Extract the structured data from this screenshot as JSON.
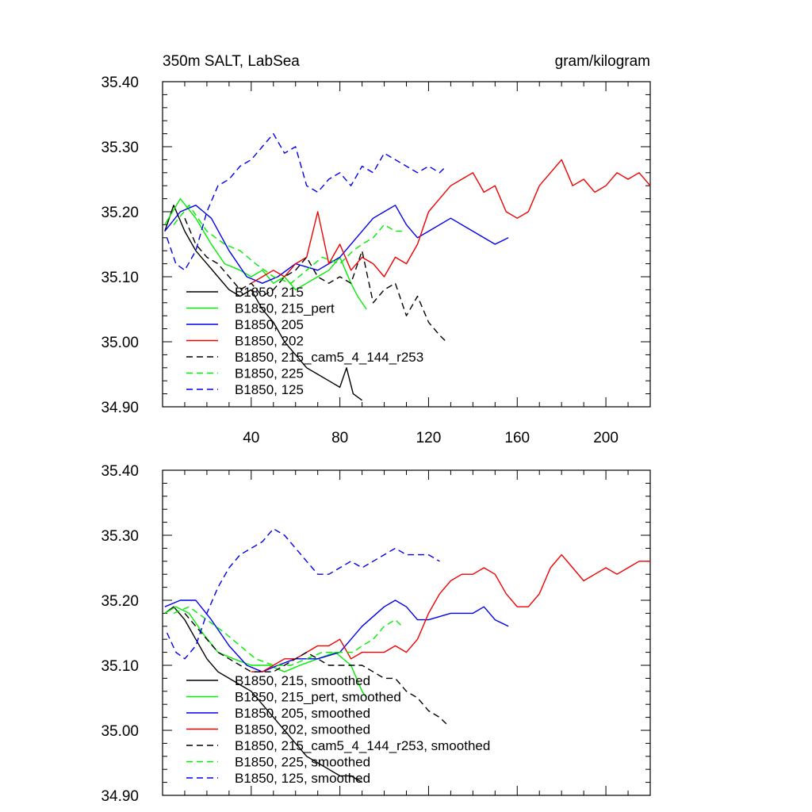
{
  "chart_data": [
    {
      "type": "line",
      "title": "350m SALT, LabSea",
      "units": "gram/kilogram",
      "xlim": [
        0,
        220
      ],
      "ylim": [
        34.9,
        35.4
      ],
      "x_ticks": [
        "40",
        "80",
        "120",
        "160",
        "200"
      ],
      "x_tick_values": [
        40,
        80,
        120,
        160,
        200
      ],
      "y_ticks": [
        "35.40",
        "35.30",
        "35.20",
        "35.10",
        "35.00",
        "34.90"
      ],
      "y_tick_values": [
        35.4,
        35.3,
        35.2,
        35.1,
        35.0,
        34.9
      ],
      "legend": [
        "B1850, 215",
        "B1850, 215_pert",
        "B1850, 205",
        "B1850, 202",
        "B1850, 215_cam5_4_144_r253",
        "B1850, 225",
        "B1850, 125"
      ],
      "series": [
        {
          "name": "B1850, 215",
          "color": "#000000",
          "dash": "solid",
          "x": [
            1,
            5,
            10,
            15,
            20,
            25,
            30,
            35,
            40,
            45,
            50,
            55,
            60,
            65,
            70,
            75,
            80,
            83,
            86,
            90
          ],
          "y": [
            35.17,
            35.21,
            35.17,
            35.14,
            35.12,
            35.1,
            35.08,
            35.07,
            35.08,
            35.05,
            35.03,
            35.0,
            34.98,
            34.96,
            34.95,
            34.94,
            34.93,
            34.96,
            34.92,
            34.91
          ]
        },
        {
          "name": "B1850, 215_pert",
          "color": "#00ee00",
          "dash": "solid",
          "x": [
            1,
            8,
            15,
            22,
            28,
            35,
            40,
            45,
            50,
            55,
            60,
            65,
            70,
            75,
            80,
            85,
            88,
            92
          ],
          "y": [
            35.18,
            35.22,
            35.19,
            35.15,
            35.12,
            35.11,
            35.1,
            35.11,
            35.09,
            35.1,
            35.08,
            35.09,
            35.1,
            35.11,
            35.13,
            35.09,
            35.07,
            35.05
          ]
        },
        {
          "name": "B1850, 205",
          "color": "#0000ee",
          "dash": "solid",
          "x": [
            1,
            8,
            15,
            22,
            30,
            38,
            45,
            52,
            60,
            70,
            80,
            90,
            95,
            100,
            105,
            110,
            115,
            120,
            130,
            140,
            150,
            156
          ],
          "y": [
            35.17,
            35.2,
            35.21,
            35.19,
            35.14,
            35.1,
            35.09,
            35.1,
            35.12,
            35.11,
            35.13,
            35.17,
            35.19,
            35.2,
            35.21,
            35.18,
            35.16,
            35.17,
            35.19,
            35.17,
            35.15,
            35.16
          ]
        },
        {
          "name": "B1850, 202",
          "color": "#ee0000",
          "dash": "solid",
          "x": [
            40,
            45,
            50,
            55,
            60,
            65,
            70,
            75,
            80,
            85,
            90,
            95,
            100,
            105,
            110,
            115,
            120,
            125,
            130,
            135,
            140,
            145,
            150,
            155,
            160,
            165,
            170,
            175,
            180,
            185,
            190,
            195,
            200,
            205,
            210,
            215,
            220
          ],
          "y": [
            35.09,
            35.1,
            35.11,
            35.1,
            35.12,
            35.13,
            35.2,
            35.12,
            35.15,
            35.11,
            35.13,
            35.12,
            35.1,
            35.13,
            35.12,
            35.15,
            35.2,
            35.22,
            35.24,
            35.25,
            35.26,
            35.23,
            35.24,
            35.2,
            35.19,
            35.2,
            35.24,
            35.26,
            35.28,
            35.24,
            35.25,
            35.23,
            35.24,
            35.26,
            35.25,
            35.26,
            35.24
          ]
        },
        {
          "name": "B1850, 215_cam5_4_144_r253",
          "color": "#000000",
          "dash": "dashed",
          "x": [
            10,
            15,
            20,
            25,
            30,
            35,
            40,
            45,
            50,
            55,
            60,
            65,
            70,
            75,
            80,
            85,
            90,
            95,
            100,
            105,
            110,
            115,
            120,
            125,
            128
          ],
          "y": [
            35.19,
            35.15,
            35.13,
            35.12,
            35.1,
            35.08,
            35.09,
            35.07,
            35.08,
            35.1,
            35.11,
            35.13,
            35.1,
            35.09,
            35.1,
            35.09,
            35.14,
            35.06,
            35.08,
            35.09,
            35.04,
            35.07,
            35.03,
            35.01,
            35.0
          ]
        },
        {
          "name": "B1850, 225",
          "color": "#00ee00",
          "dash": "dashed",
          "x": [
            5,
            12,
            20,
            28,
            35,
            42,
            50,
            58,
            65,
            72,
            80,
            86,
            90,
            95,
            100,
            105,
            108
          ],
          "y": [
            35.18,
            35.21,
            35.17,
            35.15,
            35.14,
            35.12,
            35.1,
            35.09,
            35.11,
            35.13,
            35.12,
            35.14,
            35.15,
            35.16,
            35.18,
            35.17,
            35.17
          ]
        },
        {
          "name": "B1850, 125",
          "color": "#0000ee",
          "dash": "dashed",
          "x": [
            2,
            6,
            10,
            15,
            20,
            25,
            30,
            35,
            40,
            45,
            50,
            55,
            60,
            65,
            70,
            75,
            80,
            85,
            90,
            95,
            100,
            105,
            110,
            115,
            120,
            125,
            128
          ],
          "y": [
            35.16,
            35.12,
            35.11,
            35.14,
            35.2,
            35.24,
            35.25,
            35.27,
            35.28,
            35.3,
            35.32,
            35.29,
            35.3,
            35.24,
            35.23,
            35.25,
            35.26,
            35.24,
            35.27,
            35.26,
            35.29,
            35.28,
            35.27,
            35.26,
            35.27,
            35.26,
            35.27
          ]
        }
      ]
    },
    {
      "type": "line",
      "title": "",
      "xlim": [
        0,
        220
      ],
      "ylim": [
        34.9,
        35.4
      ],
      "y_ticks": [
        "35.40",
        "35.30",
        "35.20",
        "35.10",
        "35.00",
        "34.90"
      ],
      "y_tick_values": [
        35.4,
        35.3,
        35.2,
        35.1,
        35.0,
        34.9
      ],
      "legend": [
        "B1850, 215, smoothed",
        "B1850, 215_pert, smoothed",
        "B1850, 205, smoothed",
        "B1850, 202, smoothed",
        "B1850, 215_cam5_4_144_r253, smoothed",
        "B1850, 225, smoothed",
        "B1850, 125, smoothed"
      ],
      "series": [
        {
          "name": "B1850, 215, smoothed",
          "color": "#000000",
          "dash": "solid",
          "x": [
            1,
            5,
            10,
            15,
            20,
            25,
            30,
            35,
            40,
            45,
            50,
            55,
            60,
            65,
            70,
            75,
            80,
            85,
            90
          ],
          "y": [
            35.18,
            35.19,
            35.17,
            35.14,
            35.11,
            35.09,
            35.08,
            35.07,
            35.06,
            35.04,
            35.02,
            35.0,
            34.98,
            34.96,
            34.95,
            34.94,
            34.93,
            34.93,
            34.92
          ]
        },
        {
          "name": "B1850, 215_pert, smoothed",
          "color": "#00ee00",
          "dash": "solid",
          "x": [
            1,
            6,
            12,
            18,
            25,
            32,
            40,
            48,
            55,
            62,
            70,
            78,
            85,
            90,
            92
          ],
          "y": [
            35.18,
            35.19,
            35.18,
            35.15,
            35.12,
            35.11,
            35.1,
            35.1,
            35.09,
            35.1,
            35.11,
            35.12,
            35.1,
            35.06,
            35.05
          ]
        },
        {
          "name": "B1850, 205, smoothed",
          "color": "#0000ee",
          "dash": "solid",
          "x": [
            1,
            8,
            15,
            22,
            30,
            38,
            45,
            52,
            60,
            70,
            80,
            90,
            100,
            105,
            110,
            115,
            120,
            130,
            140,
            145,
            150,
            156
          ],
          "y": [
            35.19,
            35.2,
            35.2,
            35.17,
            35.13,
            35.1,
            35.09,
            35.1,
            35.11,
            35.11,
            35.12,
            35.16,
            35.19,
            35.2,
            35.19,
            35.17,
            35.17,
            35.18,
            35.18,
            35.19,
            35.17,
            35.16
          ]
        },
        {
          "name": "B1850, 202, smoothed",
          "color": "#ee0000",
          "dash": "solid",
          "x": [
            40,
            45,
            50,
            55,
            60,
            65,
            70,
            75,
            80,
            85,
            90,
            95,
            100,
            105,
            110,
            115,
            120,
            125,
            130,
            135,
            140,
            145,
            150,
            155,
            160,
            165,
            170,
            175,
            180,
            185,
            190,
            195,
            200,
            205,
            210,
            215,
            220
          ],
          "y": [
            35.09,
            35.09,
            35.1,
            35.11,
            35.11,
            35.12,
            35.13,
            35.13,
            35.14,
            35.11,
            35.12,
            35.12,
            35.12,
            35.13,
            35.12,
            35.14,
            35.18,
            35.21,
            35.23,
            35.24,
            35.24,
            35.25,
            35.24,
            35.21,
            35.19,
            35.19,
            35.21,
            35.25,
            35.27,
            35.25,
            35.23,
            35.24,
            35.25,
            35.24,
            35.25,
            35.26,
            35.26
          ]
        },
        {
          "name": "B1850, 215_cam5_4_144_r253, smoothed",
          "color": "#000000",
          "dash": "dashed",
          "x": [
            10,
            15,
            20,
            25,
            30,
            35,
            40,
            45,
            50,
            55,
            60,
            65,
            70,
            75,
            80,
            85,
            90,
            95,
            100,
            105,
            110,
            115,
            120,
            125,
            128
          ],
          "y": [
            35.18,
            35.16,
            35.14,
            35.12,
            35.11,
            35.1,
            35.09,
            35.09,
            35.09,
            35.1,
            35.11,
            35.12,
            35.11,
            35.1,
            35.1,
            35.1,
            35.1,
            35.09,
            35.08,
            35.08,
            35.06,
            35.05,
            35.03,
            35.02,
            35.01
          ]
        },
        {
          "name": "B1850, 225, smoothed",
          "color": "#00ee00",
          "dash": "dashed",
          "x": [
            5,
            12,
            20,
            28,
            35,
            42,
            50,
            58,
            65,
            72,
            80,
            86,
            90,
            95,
            100,
            105,
            108
          ],
          "y": [
            35.18,
            35.19,
            35.17,
            35.15,
            35.13,
            35.11,
            35.1,
            35.1,
            35.11,
            35.12,
            35.12,
            35.12,
            35.13,
            35.14,
            35.16,
            35.17,
            35.16
          ]
        },
        {
          "name": "B1850, 125, smoothed",
          "color": "#0000ee",
          "dash": "dashed",
          "x": [
            2,
            6,
            10,
            15,
            20,
            25,
            30,
            35,
            40,
            45,
            50,
            55,
            60,
            65,
            70,
            75,
            80,
            85,
            90,
            95,
            100,
            105,
            110,
            115,
            120,
            125
          ],
          "y": [
            35.15,
            35.12,
            35.11,
            35.13,
            35.18,
            35.22,
            35.25,
            35.27,
            35.28,
            35.29,
            35.31,
            35.3,
            35.28,
            35.26,
            35.24,
            35.24,
            35.25,
            35.26,
            35.25,
            35.26,
            35.27,
            35.28,
            35.27,
            35.27,
            35.27,
            35.26
          ]
        }
      ]
    }
  ]
}
